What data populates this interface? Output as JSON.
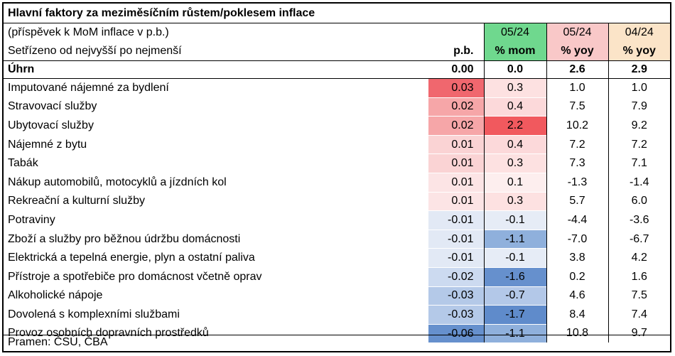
{
  "title": "Hlavní faktory za meziměsíčním růstem/poklesem inflace",
  "subtitle1": "(příspěvek k MoM inflace v p.b.)",
  "subtitle2": "Setřízeno od nejvyšší po nejmenší",
  "headers": {
    "pb": "p.b.",
    "mom_period": "05/24",
    "mom_unit": "% mom",
    "yoy1_period": "05/24",
    "yoy1_unit": "% yoy",
    "yoy2_period": "04/24",
    "yoy2_unit": "% yoy"
  },
  "total": {
    "label": "Úhrn",
    "pb": "0.00",
    "mom": "0.0",
    "yoy1": "2.6",
    "yoy2": "2.9"
  },
  "rows": [
    {
      "label": "Imputované nájemné za bydlení",
      "pb": "0.03",
      "mom": "0.3",
      "yoy1": "1.0",
      "yoy2": "1.0",
      "pb_color": "#f0676e",
      "mom_color": "#fde1e1"
    },
    {
      "label": "Stravovací služby",
      "pb": "0.02",
      "mom": "0.4",
      "yoy1": "7.5",
      "yoy2": "7.9",
      "pb_color": "#f6a6a8",
      "mom_color": "#fcd9da"
    },
    {
      "label": "Ubytovací služby",
      "pb": "0.02",
      "mom": "2.2",
      "yoy1": "10.2",
      "yoy2": "9.2",
      "pb_color": "#f6a6a8",
      "mom_color": "#f1595e"
    },
    {
      "label": "Nájemné z bytu",
      "pb": "0.01",
      "mom": "0.4",
      "yoy1": "7.2",
      "yoy2": "7.2",
      "pb_color": "#fad3d4",
      "mom_color": "#fcd9da"
    },
    {
      "label": "Tabák",
      "pb": "0.01",
      "mom": "0.3",
      "yoy1": "7.3",
      "yoy2": "7.1",
      "pb_color": "#fad3d4",
      "mom_color": "#fde1e1"
    },
    {
      "label": "Nákup automobilů, motocyklů a jízdních kol",
      "pb": "0.01",
      "mom": "0.1",
      "yoy1": "-1.3",
      "yoy2": "-1.4",
      "pb_color": "#fce4e5",
      "mom_color": "#fdeeee"
    },
    {
      "label": "Rekreační a kulturní služby",
      "pb": "0.01",
      "mom": "0.3",
      "yoy1": "5.7",
      "yoy2": "6.0",
      "pb_color": "#fce4e5",
      "mom_color": "#fde1e1"
    },
    {
      "label": "Potraviny",
      "pb": "-0.01",
      "mom": "-0.1",
      "yoy1": "-4.4",
      "yoy2": "-3.6",
      "pb_color": "#e2e9f5",
      "mom_color": "#e6ecf6"
    },
    {
      "label": "Zboží a služby pro běžnou údržbu domácnosti",
      "pb": "-0.01",
      "mom": "-1.1",
      "yoy1": "-7.0",
      "yoy2": "-6.7",
      "pb_color": "#e2e9f5",
      "mom_color": "#8fb0dc"
    },
    {
      "label": "Elektrická a tepelná energie, plyn a ostatní paliva",
      "pb": "-0.01",
      "mom": "-0.1",
      "yoy1": "3.8",
      "yoy2": "4.2",
      "pb_color": "#e2e9f5",
      "mom_color": "#e6ecf6"
    },
    {
      "label": "Přístroje a spotřebiče pro domácnost včetně oprav",
      "pb": "-0.02",
      "mom": "-1.6",
      "yoy1": "0.2",
      "yoy2": "1.6",
      "pb_color": "#ccdaf0",
      "mom_color": "#6690cd"
    },
    {
      "label": "Alkoholické nápoje",
      "pb": "-0.03",
      "mom": "-0.7",
      "yoy1": "4.6",
      "yoy2": "7.5",
      "pb_color": "#b4c9e8",
      "mom_color": "#b3c8e8"
    },
    {
      "label": "Dovolená s komplexními službami",
      "pb": "-0.03",
      "mom": "-1.7",
      "yoy1": "8.4",
      "yoy2": "7.4",
      "pb_color": "#b4c9e8",
      "mom_color": "#5f8bcb"
    },
    {
      "label": "Provoz osobních dopravních prostředků",
      "pb": "-0.06",
      "mom": "-1.1",
      "yoy1": "10.8",
      "yoy2": "9.7",
      "pb_color": "#6690cd",
      "mom_color": "#8fb0dc"
    }
  ],
  "source": "Pramen: ČSÚ, ČBA"
}
